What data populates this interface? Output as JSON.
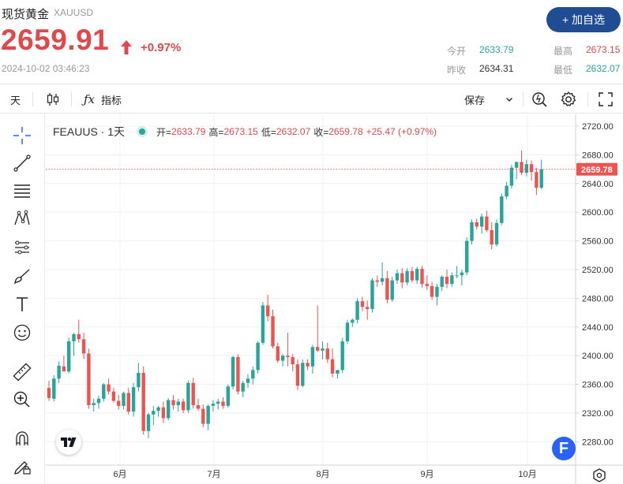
{
  "header": {
    "name": "现货黄金",
    "code": "XAUUSD",
    "price": "2659.91",
    "change_pct": "+0.97%",
    "timestamp": "2024-10-02 03:46:23",
    "add_button": "+ 加自选"
  },
  "stats": {
    "open_label": "今开",
    "open": "2633.79",
    "high_label": "最高",
    "high": "2673.15",
    "prev_close_label": "昨收",
    "prev_close": "2634.31",
    "low_label": "最低",
    "low": "2632.07"
  },
  "toolbar": {
    "interval": "天",
    "indicators_label": "指标",
    "save_label": "保存"
  },
  "legend": {
    "symbol": "FEAUUS · 1天",
    "open_label": "开=",
    "open": "2633.79",
    "high_label": "高=",
    "high": "2673.15",
    "low_label": "低=",
    "low": "2632.07",
    "close_label": "收=",
    "close": "2659.78",
    "change": "+25.47 (+0.97%)"
  },
  "colors": {
    "up": "#26a69a",
    "down": "#ef5350",
    "accent": "#e0484a",
    "button": "#1f4c93"
  },
  "chart_data": {
    "type": "candlestick",
    "series_label": "FEAUUS · 1天",
    "y_ticks": [
      2280,
      2320,
      2360,
      2400,
      2440,
      2480,
      2520,
      2560,
      2600,
      2640,
      2680,
      2720
    ],
    "ylim": [
      2248,
      2730
    ],
    "x_ticks": [
      "6月",
      "7月",
      "8月",
      "9月",
      "10月"
    ],
    "last_price_label": "2659.78",
    "ohlc": [
      [
        2355,
        2365,
        2337,
        2341
      ],
      [
        2340,
        2373,
        2336,
        2368
      ],
      [
        2368,
        2392,
        2362,
        2386
      ],
      [
        2385,
        2400,
        2380,
        2378
      ],
      [
        2378,
        2425,
        2375,
        2420
      ],
      [
        2420,
        2432,
        2400,
        2430
      ],
      [
        2430,
        2450,
        2418,
        2423
      ],
      [
        2423,
        2432,
        2395,
        2403
      ],
      [
        2403,
        2410,
        2326,
        2331
      ],
      [
        2331,
        2340,
        2322,
        2334
      ],
      [
        2334,
        2344,
        2326,
        2340
      ],
      [
        2340,
        2362,
        2336,
        2360
      ],
      [
        2360,
        2368,
        2346,
        2350
      ],
      [
        2350,
        2355,
        2335,
        2337
      ],
      [
        2337,
        2345,
        2325,
        2330
      ],
      [
        2330,
        2350,
        2325,
        2348
      ],
      [
        2348,
        2355,
        2318,
        2322
      ],
      [
        2322,
        2362,
        2315,
        2356
      ],
      [
        2356,
        2390,
        2350,
        2376
      ],
      [
        2376,
        2385,
        2290,
        2295
      ],
      [
        2295,
        2320,
        2285,
        2318
      ],
      [
        2318,
        2330,
        2303,
        2323
      ],
      [
        2323,
        2330,
        2315,
        2328
      ],
      [
        2328,
        2336,
        2306,
        2313
      ],
      [
        2313,
        2341,
        2310,
        2338
      ],
      [
        2338,
        2345,
        2325,
        2331
      ],
      [
        2331,
        2340,
        2322,
        2336
      ],
      [
        2336,
        2340,
        2320,
        2324
      ],
      [
        2324,
        2365,
        2320,
        2362
      ],
      [
        2362,
        2369,
        2326,
        2331
      ],
      [
        2331,
        2340,
        2323,
        2326
      ],
      [
        2326,
        2332,
        2300,
        2305
      ],
      [
        2305,
        2332,
        2296,
        2330
      ],
      [
        2330,
        2338,
        2322,
        2333
      ],
      [
        2333,
        2340,
        2325,
        2336
      ],
      [
        2336,
        2342,
        2326,
        2330
      ],
      [
        2330,
        2360,
        2328,
        2357
      ],
      [
        2357,
        2400,
        2353,
        2398
      ],
      [
        2398,
        2402,
        2346,
        2350
      ],
      [
        2350,
        2365,
        2342,
        2362
      ],
      [
        2362,
        2374,
        2355,
        2368
      ],
      [
        2368,
        2385,
        2360,
        2380
      ],
      [
        2380,
        2420,
        2375,
        2418
      ],
      [
        2418,
        2475,
        2415,
        2470
      ],
      [
        2470,
        2485,
        2448,
        2455
      ],
      [
        2455,
        2464,
        2410,
        2413
      ],
      [
        2413,
        2418,
        2390,
        2393
      ],
      [
        2393,
        2402,
        2385,
        2400
      ],
      [
        2400,
        2432,
        2385,
        2398
      ],
      [
        2398,
        2402,
        2378,
        2388
      ],
      [
        2388,
        2395,
        2352,
        2358
      ],
      [
        2358,
        2395,
        2356,
        2390
      ],
      [
        2390,
        2395,
        2380,
        2385
      ],
      [
        2385,
        2415,
        2375,
        2412
      ],
      [
        2412,
        2470,
        2405,
        2407
      ],
      [
        2407,
        2420,
        2395,
        2410
      ],
      [
        2410,
        2418,
        2390,
        2395
      ],
      [
        2395,
        2410,
        2370,
        2375
      ],
      [
        2375,
        2380,
        2368,
        2380
      ],
      [
        2380,
        2425,
        2376,
        2420
      ],
      [
        2420,
        2450,
        2416,
        2446
      ],
      [
        2446,
        2452,
        2440,
        2450
      ],
      [
        2450,
        2480,
        2445,
        2476
      ],
      [
        2476,
        2482,
        2462,
        2468
      ],
      [
        2468,
        2477,
        2450,
        2465
      ],
      [
        2465,
        2508,
        2460,
        2505
      ],
      [
        2505,
        2512,
        2496,
        2503
      ],
      [
        2503,
        2530,
        2498,
        2508
      ],
      [
        2508,
        2518,
        2473,
        2478
      ],
      [
        2478,
        2510,
        2475,
        2505
      ],
      [
        2505,
        2520,
        2500,
        2515
      ],
      [
        2515,
        2522,
        2494,
        2502
      ],
      [
        2502,
        2522,
        2498,
        2518
      ],
      [
        2518,
        2524,
        2502,
        2505
      ],
      [
        2505,
        2524,
        2500,
        2521
      ],
      [
        2521,
        2525,
        2495,
        2500
      ],
      [
        2500,
        2512,
        2492,
        2497
      ],
      [
        2497,
        2503,
        2478,
        2482
      ],
      [
        2482,
        2500,
        2470,
        2496
      ],
      [
        2496,
        2512,
        2490,
        2510
      ],
      [
        2510,
        2520,
        2494,
        2500
      ],
      [
        2500,
        2516,
        2496,
        2512
      ],
      [
        2512,
        2525,
        2508,
        2512
      ],
      [
        2512,
        2520,
        2498,
        2516
      ],
      [
        2516,
        2565,
        2512,
        2560
      ],
      [
        2560,
        2590,
        2555,
        2586
      ],
      [
        2586,
        2591,
        2576,
        2580
      ],
      [
        2580,
        2598,
        2570,
        2594
      ],
      [
        2594,
        2602,
        2572,
        2575
      ],
      [
        2575,
        2586,
        2548,
        2555
      ],
      [
        2555,
        2590,
        2552,
        2585
      ],
      [
        2585,
        2626,
        2582,
        2622
      ],
      [
        2622,
        2642,
        2618,
        2637
      ],
      [
        2637,
        2666,
        2633,
        2662
      ],
      [
        2662,
        2670,
        2646,
        2670
      ],
      [
        2670,
        2686,
        2652,
        2655
      ],
      [
        2655,
        2673,
        2650,
        2667
      ],
      [
        2667,
        2672,
        2644,
        2656
      ],
      [
        2656,
        2662,
        2624,
        2634
      ],
      [
        2634,
        2673,
        2632,
        2660
      ]
    ]
  }
}
